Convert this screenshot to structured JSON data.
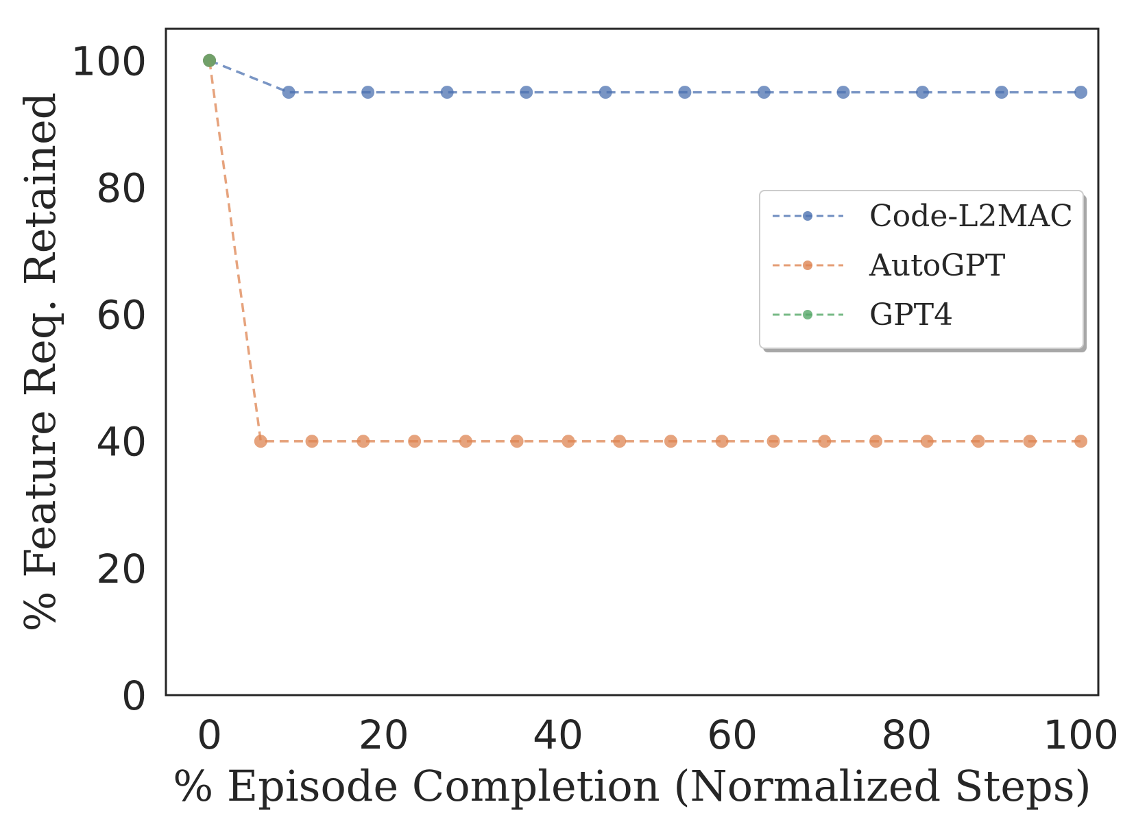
{
  "chart_data": {
    "type": "line",
    "xlabel": "% Episode Completion (Normalized Steps)",
    "ylabel": "% Feature Req. Retained",
    "xlim": [
      -5,
      102
    ],
    "ylim": [
      0,
      105
    ],
    "xticks": [
      0,
      20,
      40,
      60,
      80,
      100
    ],
    "yticks": [
      0,
      20,
      40,
      60,
      80,
      100
    ],
    "grid": false,
    "legend_position": "center-right",
    "series": [
      {
        "name": "Code-L2MAC",
        "color": "#4c72b0",
        "line_style": "dashed",
        "marker": "circle",
        "points": [
          [
            0,
            100
          ],
          [
            9.09,
            95
          ],
          [
            18.18,
            95
          ],
          [
            27.27,
            95
          ],
          [
            36.36,
            95
          ],
          [
            45.45,
            95
          ],
          [
            54.55,
            95
          ],
          [
            63.64,
            95
          ],
          [
            72.73,
            95
          ],
          [
            81.82,
            95
          ],
          [
            90.91,
            95
          ],
          [
            100,
            95
          ]
        ]
      },
      {
        "name": "AutoGPT",
        "color": "#dd8452",
        "line_style": "dashed",
        "marker": "circle",
        "points": [
          [
            0,
            100
          ],
          [
            5.88,
            40
          ],
          [
            11.76,
            40
          ],
          [
            17.65,
            40
          ],
          [
            23.53,
            40
          ],
          [
            29.41,
            40
          ],
          [
            35.29,
            40
          ],
          [
            41.18,
            40
          ],
          [
            47.06,
            40
          ],
          [
            52.94,
            40
          ],
          [
            58.82,
            40
          ],
          [
            64.71,
            40
          ],
          [
            70.59,
            40
          ],
          [
            76.47,
            40
          ],
          [
            82.35,
            40
          ],
          [
            88.24,
            40
          ],
          [
            94.12,
            40
          ],
          [
            100,
            40
          ]
        ]
      },
      {
        "name": "GPT4",
        "color": "#55a868",
        "line_style": "dashed",
        "marker": "circle",
        "points": [
          [
            0,
            100
          ]
        ]
      }
    ]
  }
}
